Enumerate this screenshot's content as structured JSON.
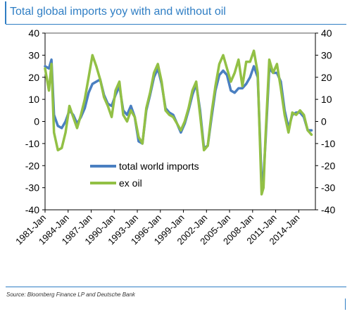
{
  "title": "Total global imports yoy with and without oil",
  "source": "Source: Bloomberg Finance LP and Deutsche Bank",
  "colors": {
    "title": "#2f7ec4",
    "total": "#4a7fc1",
    "exoil": "#92c045",
    "axis": "#000000"
  },
  "chart_data": {
    "type": "line",
    "title": "Total global imports yoy with and without oil",
    "xlabel": "",
    "ylabel": "",
    "ylim": [
      -40,
      40
    ],
    "yticks": [
      "40",
      "30",
      "20",
      "10",
      "0",
      "-10",
      "-20",
      "-30",
      "-40"
    ],
    "yticks_right": [
      "40",
      "30",
      "20",
      "10",
      "0",
      "-10",
      "-20",
      "-30",
      "-40"
    ],
    "xticks": [
      "1981-Jan",
      "1984-Jan",
      "1987-Jan",
      "1990-Jan",
      "1993-Jan",
      "1996-Jan",
      "1999-Jan",
      "2002-Jan",
      "2005-Jan",
      "2008-Jan",
      "2011-Jan",
      "2014-Jan"
    ],
    "xlim": [
      "1981-01",
      "2016-03"
    ],
    "grid": false,
    "legend_position": "inside-lower-center",
    "series": [
      {
        "name": "total world imports",
        "color": "#4a7fc1",
        "points": [
          [
            "1981-01",
            25
          ],
          [
            "1981-07",
            24
          ],
          [
            "1981-11",
            28
          ],
          [
            "1982-03",
            3
          ],
          [
            "1982-09",
            -2
          ],
          [
            "1983-03",
            -3
          ],
          [
            "1983-09",
            0
          ],
          [
            "1984-03",
            5
          ],
          [
            "1984-09",
            3
          ],
          [
            "1985-03",
            -1
          ],
          [
            "1985-09",
            2
          ],
          [
            "1986-03",
            6
          ],
          [
            "1986-09",
            13
          ],
          [
            "1987-03",
            17
          ],
          [
            "1987-09",
            18
          ],
          [
            "1988-03",
            19
          ],
          [
            "1988-09",
            12
          ],
          [
            "1989-03",
            8
          ],
          [
            "1989-09",
            7
          ],
          [
            "1990-03",
            12
          ],
          [
            "1990-09",
            16
          ],
          [
            "1991-03",
            5
          ],
          [
            "1991-09",
            3
          ],
          [
            "1992-03",
            7
          ],
          [
            "1992-09",
            2
          ],
          [
            "1993-03",
            -9
          ],
          [
            "1993-09",
            -10
          ],
          [
            "1994-03",
            5
          ],
          [
            "1994-09",
            12
          ],
          [
            "1995-03",
            20
          ],
          [
            "1995-09",
            24
          ],
          [
            "1996-03",
            17
          ],
          [
            "1996-09",
            6
          ],
          [
            "1997-03",
            4
          ],
          [
            "1997-09",
            3
          ],
          [
            "1998-03",
            -1
          ],
          [
            "1998-09",
            -5
          ],
          [
            "1999-03",
            -1
          ],
          [
            "1999-09",
            5
          ],
          [
            "2000-03",
            12
          ],
          [
            "2000-09",
            17
          ],
          [
            "2001-03",
            5
          ],
          [
            "2001-09",
            -12
          ],
          [
            "2002-03",
            -11
          ],
          [
            "2002-09",
            2
          ],
          [
            "2003-03",
            14
          ],
          [
            "2003-09",
            21
          ],
          [
            "2004-03",
            23
          ],
          [
            "2004-09",
            21
          ],
          [
            "2005-03",
            14
          ],
          [
            "2005-09",
            13
          ],
          [
            "2006-03",
            15
          ],
          [
            "2006-09",
            15
          ],
          [
            "2007-03",
            17
          ],
          [
            "2007-09",
            20
          ],
          [
            "2008-03",
            25
          ],
          [
            "2008-09",
            20
          ],
          [
            "2009-03",
            -27
          ],
          [
            "2009-06",
            -25
          ],
          [
            "2009-09",
            -10
          ],
          [
            "2010-03",
            24
          ],
          [
            "2010-09",
            22
          ],
          [
            "2011-03",
            22
          ],
          [
            "2011-09",
            18
          ],
          [
            "2012-03",
            5
          ],
          [
            "2012-09",
            -3
          ],
          [
            "2013-03",
            3
          ],
          [
            "2013-09",
            4
          ],
          [
            "2014-03",
            4
          ],
          [
            "2014-09",
            2
          ],
          [
            "2015-03",
            -4
          ],
          [
            "2015-09",
            -4
          ]
        ]
      },
      {
        "name": "ex oil",
        "color": "#92c045",
        "points": [
          [
            "1981-01",
            24
          ],
          [
            "1981-07",
            14
          ],
          [
            "1981-11",
            26
          ],
          [
            "1982-03",
            -5
          ],
          [
            "1982-09",
            -13
          ],
          [
            "1983-03",
            -12
          ],
          [
            "1983-09",
            -5
          ],
          [
            "1984-03",
            7
          ],
          [
            "1984-09",
            2
          ],
          [
            "1985-03",
            -3
          ],
          [
            "1985-09",
            3
          ],
          [
            "1986-03",
            10
          ],
          [
            "1986-09",
            20
          ],
          [
            "1987-03",
            30
          ],
          [
            "1987-09",
            25
          ],
          [
            "1988-03",
            19
          ],
          [
            "1988-09",
            11
          ],
          [
            "1989-03",
            7
          ],
          [
            "1989-09",
            2
          ],
          [
            "1990-03",
            14
          ],
          [
            "1990-09",
            18
          ],
          [
            "1991-03",
            3
          ],
          [
            "1991-09",
            0
          ],
          [
            "1992-03",
            5
          ],
          [
            "1992-09",
            2
          ],
          [
            "1993-03",
            -7
          ],
          [
            "1993-09",
            -10
          ],
          [
            "1994-03",
            6
          ],
          [
            "1994-09",
            13
          ],
          [
            "1995-03",
            22
          ],
          [
            "1995-09",
            26
          ],
          [
            "1996-03",
            18
          ],
          [
            "1996-09",
            5
          ],
          [
            "1997-03",
            3
          ],
          [
            "1997-09",
            2
          ],
          [
            "1998-03",
            -1
          ],
          [
            "1998-09",
            -4
          ],
          [
            "1999-03",
            0
          ],
          [
            "1999-09",
            6
          ],
          [
            "2000-03",
            14
          ],
          [
            "2000-09",
            18
          ],
          [
            "2001-03",
            3
          ],
          [
            "2001-09",
            -13
          ],
          [
            "2002-03",
            -11
          ],
          [
            "2002-09",
            4
          ],
          [
            "2003-03",
            16
          ],
          [
            "2003-09",
            26
          ],
          [
            "2004-03",
            30
          ],
          [
            "2004-09",
            24
          ],
          [
            "2005-03",
            18
          ],
          [
            "2005-09",
            22
          ],
          [
            "2006-03",
            28
          ],
          [
            "2006-09",
            16
          ],
          [
            "2007-03",
            27
          ],
          [
            "2007-09",
            27
          ],
          [
            "2008-03",
            32
          ],
          [
            "2008-09",
            22
          ],
          [
            "2009-03",
            -33
          ],
          [
            "2009-06",
            -30
          ],
          [
            "2009-09",
            -8
          ],
          [
            "2010-03",
            28
          ],
          [
            "2010-09",
            22
          ],
          [
            "2011-03",
            26
          ],
          [
            "2011-09",
            15
          ],
          [
            "2012-03",
            3
          ],
          [
            "2012-09",
            -5
          ],
          [
            "2013-03",
            4
          ],
          [
            "2013-09",
            3
          ],
          [
            "2014-03",
            5
          ],
          [
            "2014-09",
            3
          ],
          [
            "2015-03",
            -4
          ],
          [
            "2015-09",
            -6
          ]
        ]
      }
    ]
  }
}
